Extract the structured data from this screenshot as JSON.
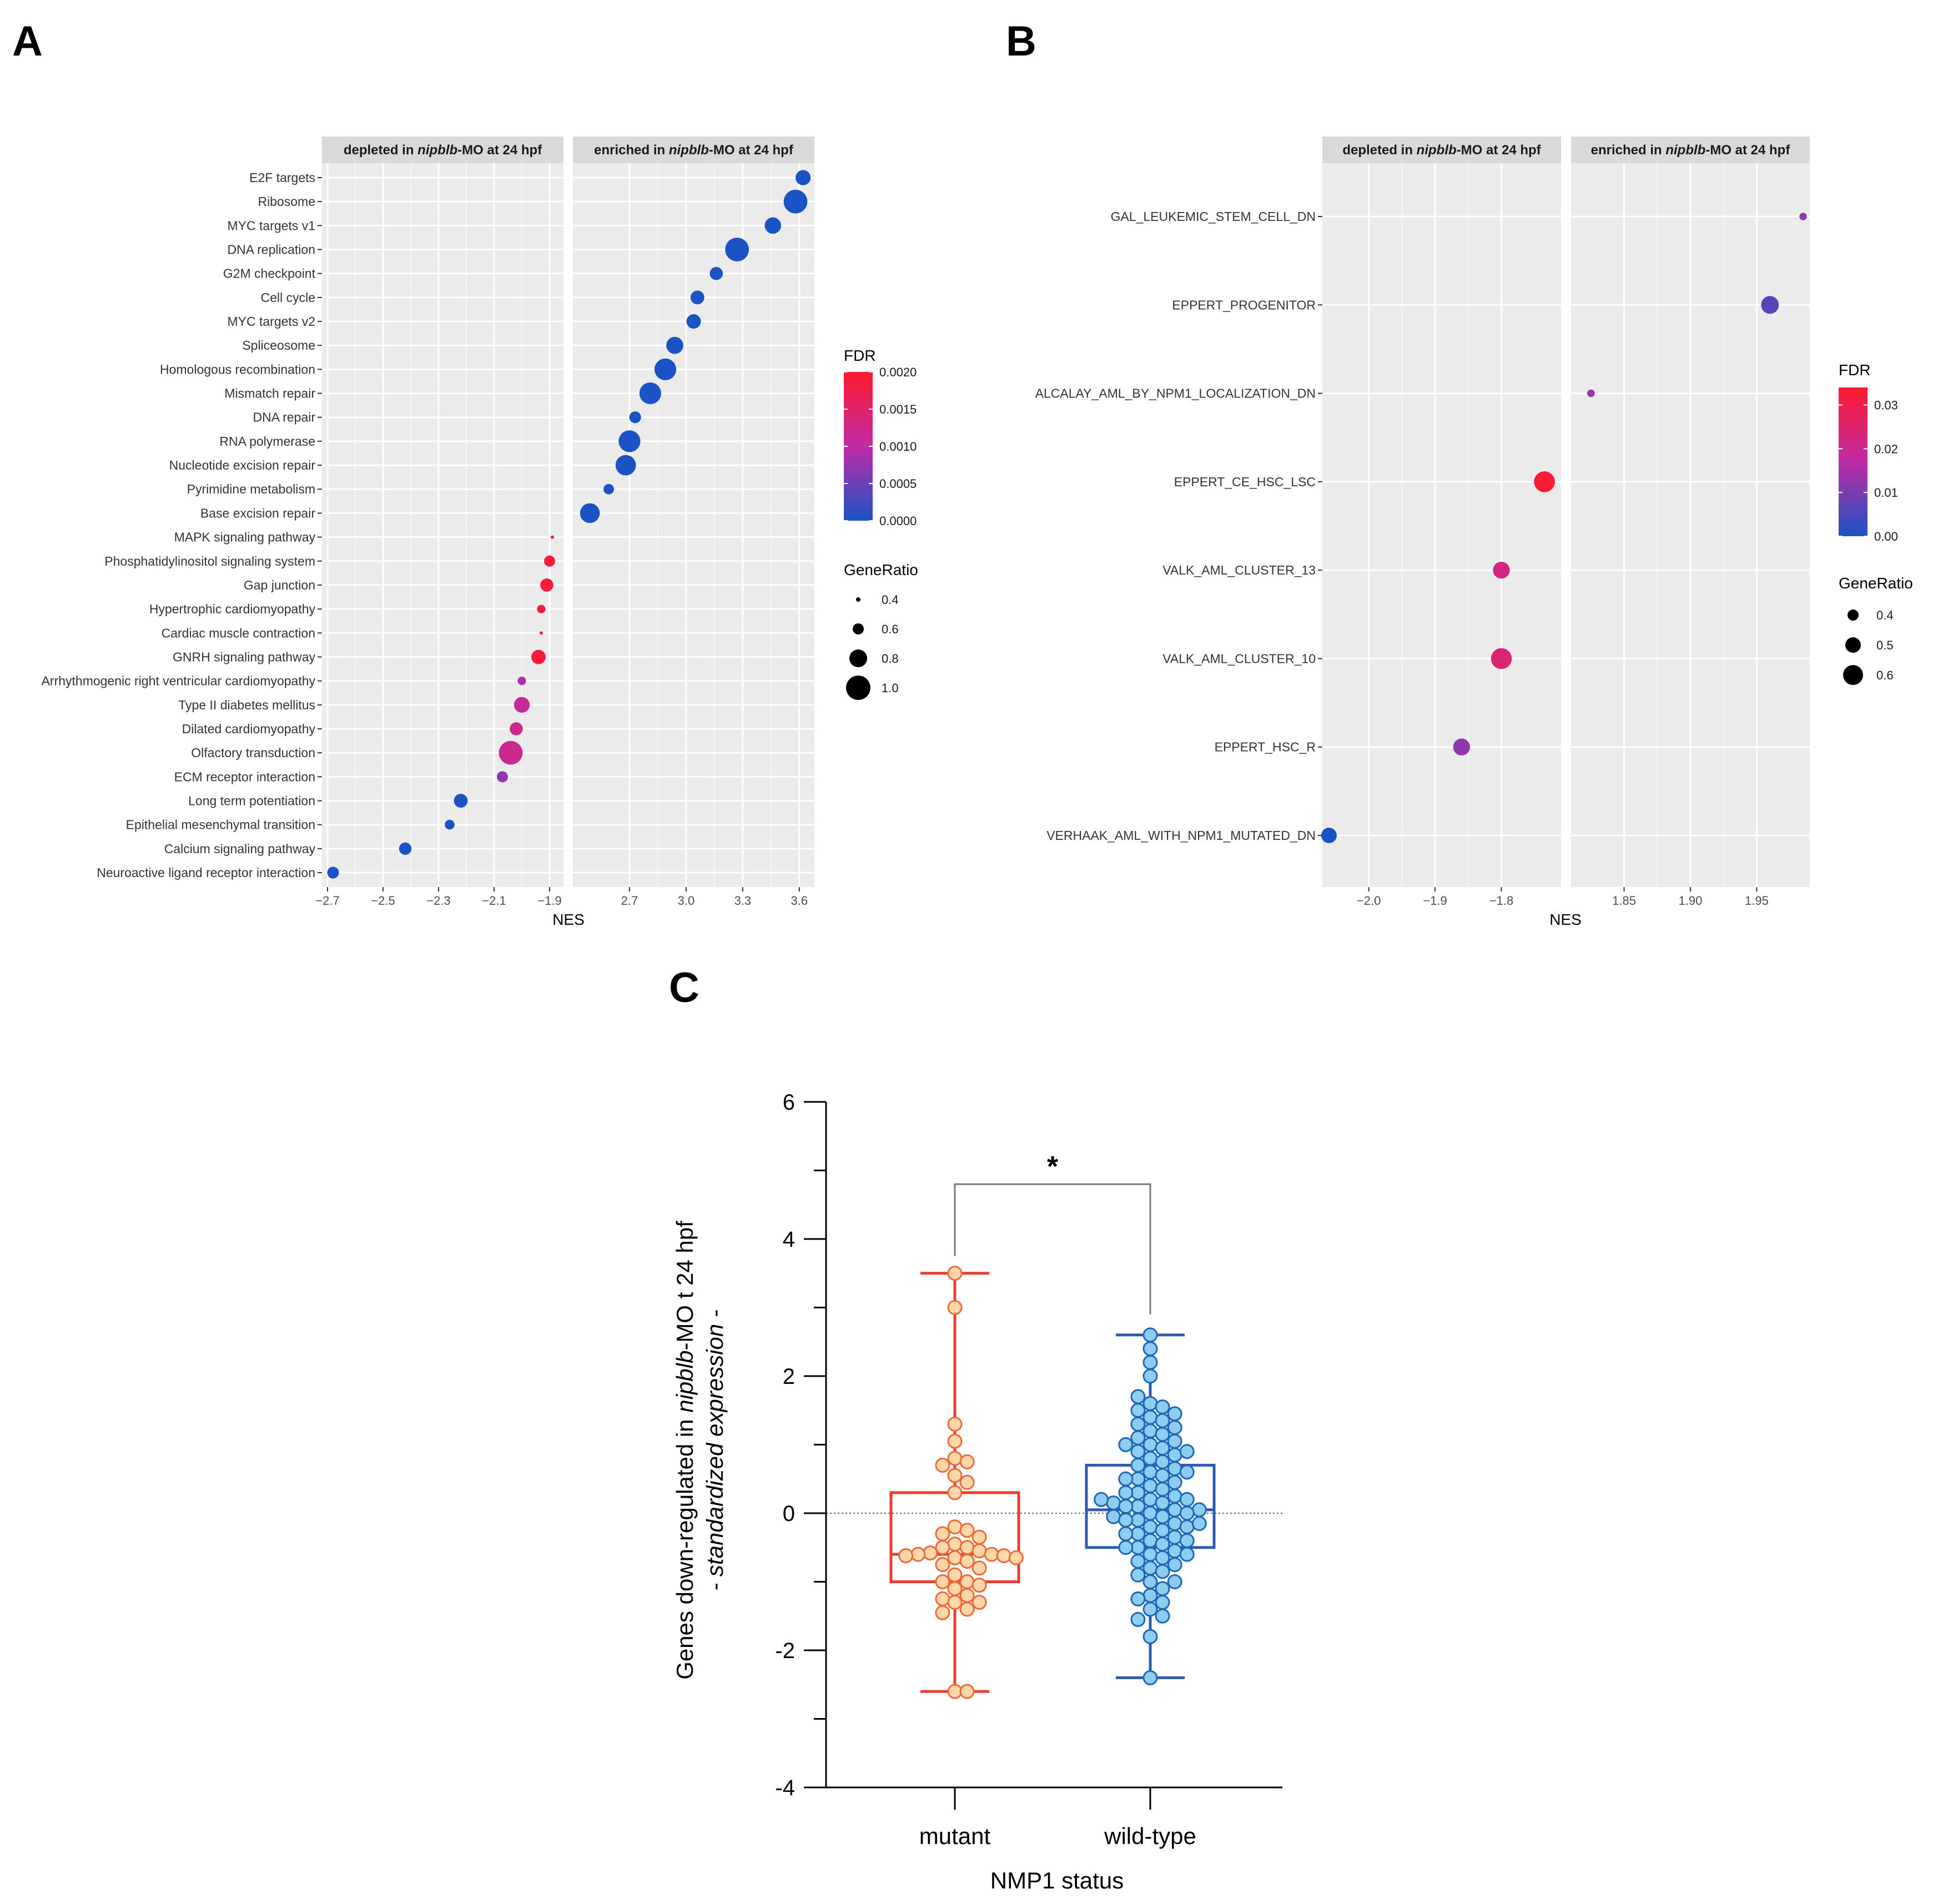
{
  "panels": {
    "a": "A",
    "b": "B",
    "c": "C"
  },
  "chart_data": [
    {
      "id": "A",
      "type": "scatter",
      "xlabel": "NES",
      "facets": [
        {
          "key": "dep",
          "label": "depleted in nipblb-MO at 24 hpf",
          "xlim": [
            -2.72,
            -1.85
          ],
          "ticks": [
            -2.7,
            -2.5,
            -2.3,
            -2.1,
            -1.9
          ],
          "tick_labels": [
            "−2.7",
            "−2.5",
            "−2.3",
            "−2.1",
            "−1.9"
          ]
        },
        {
          "key": "enr",
          "label": "enriched in nipblb-MO at 24 hpf",
          "xlim": [
            2.4,
            3.68
          ],
          "ticks": [
            2.7,
            3.0,
            3.3,
            3.6
          ],
          "tick_labels": [
            "2.7",
            "3.0",
            "3.3",
            "3.6"
          ]
        }
      ],
      "categories": [
        "E2F targets",
        "Ribosome",
        "MYC targets v1",
        "DNA replication",
        "G2M checkpoint",
        "Cell cycle",
        "MYC targets v2",
        "Spliceosome",
        "Homologous recombination",
        "Mismatch repair",
        "DNA repair",
        "RNA polymerase",
        "Nucleotide excision repair",
        "Pyrimidine metabolism",
        "Base excision repair",
        "MAPK signaling pathway",
        "Phosphatidylinositol signaling system",
        "Gap junction",
        "Hypertrophic cardiomyopathy",
        "Cardiac muscle contraction",
        "GNRH signaling pathway",
        "Arrhythmogenic right ventricular cardiomyopathy",
        "Type II diabetes mellitus",
        "Dilated cardiomyopathy",
        "Olfactory transduction",
        "ECM receptor interaction",
        "Long term potentiation",
        "Epithelial mesenchymal transition",
        "Calcium signaling pathway",
        "Neuroactive ligand receptor interaction"
      ],
      "points": [
        {
          "term": "E2F targets",
          "facet": "enr",
          "nes": 3.62,
          "fdr": 0.0,
          "ratio": 0.72
        },
        {
          "term": "Ribosome",
          "facet": "enr",
          "nes": 3.58,
          "fdr": 0.0,
          "ratio": 0.98
        },
        {
          "term": "MYC targets v1",
          "facet": "enr",
          "nes": 3.46,
          "fdr": 0.0,
          "ratio": 0.76
        },
        {
          "term": "DNA replication",
          "facet": "enr",
          "nes": 3.27,
          "fdr": 0.0,
          "ratio": 0.98
        },
        {
          "term": "G2M checkpoint",
          "facet": "enr",
          "nes": 3.16,
          "fdr": 0.0,
          "ratio": 0.66
        },
        {
          "term": "Cell cycle",
          "facet": "enr",
          "nes": 3.06,
          "fdr": 0.0,
          "ratio": 0.68
        },
        {
          "term": "MYC targets v2",
          "facet": "enr",
          "nes": 3.04,
          "fdr": 0.0,
          "ratio": 0.7
        },
        {
          "term": "Spliceosome",
          "facet": "enr",
          "nes": 2.94,
          "fdr": 0.0,
          "ratio": 0.78
        },
        {
          "term": "Homologous recombination",
          "facet": "enr",
          "nes": 2.89,
          "fdr": 0.0,
          "ratio": 0.92
        },
        {
          "term": "Mismatch repair",
          "facet": "enr",
          "nes": 2.81,
          "fdr": 0.0,
          "ratio": 0.92
        },
        {
          "term": "DNA repair",
          "facet": "enr",
          "nes": 2.73,
          "fdr": 0.0,
          "ratio": 0.62
        },
        {
          "term": "RNA polymerase",
          "facet": "enr",
          "nes": 2.7,
          "fdr": 0.0,
          "ratio": 0.92
        },
        {
          "term": "Nucleotide excision repair",
          "facet": "enr",
          "nes": 2.68,
          "fdr": 0.0,
          "ratio": 0.88
        },
        {
          "term": "Pyrimidine metabolism",
          "facet": "enr",
          "nes": 2.59,
          "fdr": 0.0,
          "ratio": 0.58
        },
        {
          "term": "Base excision repair",
          "facet": "enr",
          "nes": 2.49,
          "fdr": 0.0,
          "ratio": 0.86
        },
        {
          "term": "MAPK signaling pathway",
          "facet": "dep",
          "nes": -1.89,
          "fdr": 0.002,
          "ratio": 0.36
        },
        {
          "term": "Phosphatidylinositol signaling system",
          "facet": "dep",
          "nes": -1.9,
          "fdr": 0.0019,
          "ratio": 0.6
        },
        {
          "term": "Gap junction",
          "facet": "dep",
          "nes": -1.91,
          "fdr": 0.0019,
          "ratio": 0.66
        },
        {
          "term": "Hypertrophic cardiomyopathy",
          "facet": "dep",
          "nes": -1.93,
          "fdr": 0.0019,
          "ratio": 0.52
        },
        {
          "term": "Cardiac muscle contraction",
          "facet": "dep",
          "nes": -1.93,
          "fdr": 0.002,
          "ratio": 0.2
        },
        {
          "term": "GNRH signaling pathway",
          "facet": "dep",
          "nes": -1.94,
          "fdr": 0.0019,
          "ratio": 0.7
        },
        {
          "term": "Arrhythmogenic right ventricular cardiomyopathy",
          "facet": "dep",
          "nes": -2.0,
          "fdr": 0.0009,
          "ratio": 0.52
        },
        {
          "term": "Type II diabetes mellitus",
          "facet": "dep",
          "nes": -2.0,
          "fdr": 0.0011,
          "ratio": 0.74
        },
        {
          "term": "Dilated cardiomyopathy",
          "facet": "dep",
          "nes": -2.02,
          "fdr": 0.0012,
          "ratio": 0.66
        },
        {
          "term": "Olfactory transduction",
          "facet": "dep",
          "nes": -2.04,
          "fdr": 0.0012,
          "ratio": 0.98
        },
        {
          "term": "ECM receptor interaction",
          "facet": "dep",
          "nes": -2.07,
          "fdr": 0.0007,
          "ratio": 0.6
        },
        {
          "term": "Long term potentiation",
          "facet": "dep",
          "nes": -2.22,
          "fdr": 0.0,
          "ratio": 0.68
        },
        {
          "term": "Epithelial mesenchymal transition",
          "facet": "dep",
          "nes": -2.26,
          "fdr": 0.0,
          "ratio": 0.56
        },
        {
          "term": "Calcium signaling pathway",
          "facet": "dep",
          "nes": -2.42,
          "fdr": 0.0,
          "ratio": 0.64
        },
        {
          "term": "Neuroactive ligand receptor interaction",
          "facet": "dep",
          "nes": -2.68,
          "fdr": 0.0,
          "ratio": 0.62
        }
      ],
      "legend": {
        "color_title": "FDR",
        "color_range": [
          0.0,
          0.002
        ],
        "color_ticks": [
          0.0,
          0.0005,
          0.001,
          0.0015,
          0.002
        ],
        "color_labels": [
          "0.0000",
          "0.0005",
          "0.0010",
          "0.0015",
          "0.0020"
        ],
        "size_title": "GeneRatio",
        "size_values": [
          0.4,
          0.6,
          0.8,
          1.0
        ],
        "size_labels": [
          "0.4",
          "0.6",
          "0.8",
          "1.0"
        ]
      }
    },
    {
      "id": "B",
      "type": "scatter",
      "xlabel": "NES",
      "facets": [
        {
          "key": "dep",
          "label": "depleted in nipblb-MO at 24 hpf",
          "xlim": [
            -2.07,
            -1.71
          ],
          "ticks": [
            -2.0,
            -1.9,
            -1.8
          ],
          "tick_labels": [
            "−2.0",
            "−1.9",
            "−1.8"
          ]
        },
        {
          "key": "enr",
          "label": "enriched in nipblb-MO at 24 hpf",
          "xlim": [
            1.81,
            1.99
          ],
          "ticks": [
            1.85,
            1.9,
            1.95
          ],
          "tick_labels": [
            "1.85",
            "1.90",
            "1.95"
          ]
        }
      ],
      "categories": [
        "GAL_LEUKEMIC_STEM_CELL_DN",
        "EPPERT_PROGENITOR",
        "ALCALAY_AML_BY_NPM1_LOCALIZATION_DN",
        "EPPERT_CE_HSC_LSC",
        "VALK_AML_CLUSTER_13",
        "VALK_AML_CLUSTER_10",
        "EPPERT_HSC_R",
        "VERHAAK_AML_WITH_NPM1_MUTATED_DN"
      ],
      "points": [
        {
          "term": "GAL_LEUKEMIC_STEM_CELL_DN",
          "facet": "enr",
          "nes": 1.985,
          "fdr": 0.012,
          "ratio": 0.32
        },
        {
          "term": "EPPERT_PROGENITOR",
          "facet": "enr",
          "nes": 1.96,
          "fdr": 0.006,
          "ratio": 0.55
        },
        {
          "term": "ALCALAY_AML_BY_NPM1_LOCALIZATION_DN",
          "facet": "enr",
          "nes": 1.825,
          "fdr": 0.013,
          "ratio": 0.32
        },
        {
          "term": "EPPERT_CE_HSC_LSC",
          "facet": "dep",
          "nes": -1.735,
          "fdr": 0.033,
          "ratio": 0.62
        },
        {
          "term": "VALK_AML_CLUSTER_13",
          "facet": "dep",
          "nes": -1.8,
          "fdr": 0.022,
          "ratio": 0.53
        },
        {
          "term": "VALK_AML_CLUSTER_10",
          "facet": "dep",
          "nes": -1.8,
          "fdr": 0.024,
          "ratio": 0.62
        },
        {
          "term": "EPPERT_HSC_R",
          "facet": "dep",
          "nes": -1.86,
          "fdr": 0.012,
          "ratio": 0.53
        },
        {
          "term": "VERHAAK_AML_WITH_NPM1_MUTATED_DN",
          "facet": "dep",
          "nes": -2.06,
          "fdr": 0.0,
          "ratio": 0.5
        }
      ],
      "legend": {
        "color_title": "FDR",
        "color_range": [
          0.0,
          0.034
        ],
        "color_ticks": [
          0.0,
          0.01,
          0.02,
          0.03
        ],
        "color_labels": [
          "0.00",
          "0.01",
          "0.02",
          "0.03"
        ],
        "size_title": "GeneRatio",
        "size_values": [
          0.4,
          0.5,
          0.6
        ],
        "size_labels": [
          "0.4",
          "0.5",
          "0.6"
        ]
      }
    },
    {
      "id": "C",
      "type": "box",
      "title": "",
      "xlabel": "NMP1 status",
      "ylabel_main": "Genes down-regulated in nipblb-MO t 24 hpf",
      "ylabel_sub": "- standardized expression -",
      "ylim": [
        -4,
        6
      ],
      "yticks": [
        -4,
        -2,
        0,
        2,
        4,
        6
      ],
      "ytick_labels": [
        "-4",
        "-2",
        "0",
        "2",
        "4",
        "6"
      ],
      "significance": "*",
      "groups": [
        {
          "name": "mutant",
          "min": -2.6,
          "q1": -1.0,
          "median": -0.6,
          "q3": 0.3,
          "max": 3.5,
          "points": [
            3.5,
            3.0,
            1.3,
            1.05,
            0.8,
            0.75,
            0.7,
            0.55,
            0.45,
            0.3,
            -0.2,
            -0.25,
            -0.3,
            -0.35,
            -0.45,
            -0.5,
            -0.5,
            -0.55,
            -0.58,
            -0.6,
            -0.6,
            -0.62,
            -0.62,
            -0.65,
            -0.65,
            -0.7,
            -0.75,
            -0.8,
            -0.9,
            -1.0,
            -1.0,
            -1.05,
            -1.1,
            -1.2,
            -1.25,
            -1.3,
            -1.3,
            -1.4,
            -1.45,
            -2.6,
            -2.6
          ]
        },
        {
          "name": "wild-type",
          "min": -2.4,
          "q1": -0.5,
          "median": 0.05,
          "q3": 0.7,
          "max": 2.6,
          "points": [
            2.6,
            2.4,
            2.2,
            2.0,
            1.6,
            1.55,
            1.5,
            1.45,
            1.4,
            1.35,
            1.3,
            1.25,
            1.2,
            1.15,
            1.1,
            1.05,
            1.0,
            0.95,
            0.9,
            0.85,
            0.8,
            0.75,
            0.7,
            0.65,
            0.6,
            0.55,
            0.5,
            0.5,
            0.45,
            0.4,
            0.35,
            0.3,
            0.3,
            0.25,
            0.2,
            0.2,
            0.15,
            0.15,
            0.1,
            0.1,
            0.05,
            0.05,
            0.0,
            0.0,
            -0.05,
            -0.05,
            -0.1,
            -0.1,
            -0.15,
            -0.2,
            -0.2,
            -0.25,
            -0.3,
            -0.3,
            -0.35,
            -0.4,
            -0.4,
            -0.45,
            -0.5,
            -0.5,
            -0.55,
            -0.6,
            -0.65,
            -0.7,
            -0.75,
            -0.8,
            -0.85,
            -0.9,
            -1.0,
            -1.1,
            -1.2,
            -1.25,
            -1.3,
            -1.4,
            -1.5,
            -1.55,
            -1.8,
            -2.4,
            1.7,
            1.0,
            0.6,
            0.2,
            -0.6,
            -1.0,
            0.9,
            -0.15
          ]
        }
      ]
    }
  ]
}
